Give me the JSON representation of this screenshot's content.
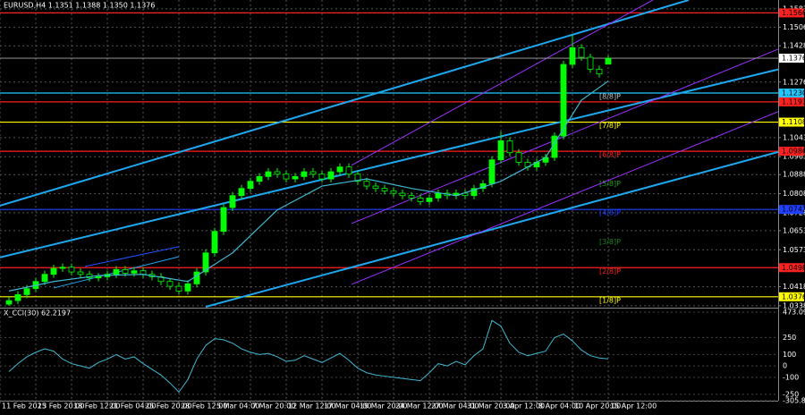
{
  "chart_data": {
    "type": "candlestick",
    "title": "EURUSD,H4  1.1351 1.1388 1.1350 1.1376",
    "color": "#00ff00",
    "open": [
      1.0345,
      1.036,
      1.0385,
      1.041,
      1.044,
      1.047,
      1.0495,
      1.05,
      1.048,
      1.047,
      1.0455,
      1.046,
      1.047,
      1.049,
      1.0475,
      1.0485,
      1.047,
      1.046,
      1.044,
      1.042,
      1.04,
      1.043,
      1.048,
      1.056,
      1.065,
      1.075,
      1.08,
      1.083,
      1.086,
      1.088,
      1.09,
      1.089,
      1.087,
      1.088,
      1.09,
      1.089,
      1.087,
      1.09,
      1.092,
      1.089,
      1.086,
      1.084,
      1.083,
      1.082,
      1.081,
      1.08,
      1.079,
      1.0775,
      1.079,
      1.081,
      1.08,
      1.081,
      1.08,
      1.083,
      1.085,
      1.095,
      1.103,
      1.098,
      1.094,
      1.092,
      1.094,
      1.096,
      1.105,
      1.135,
      1.142,
      1.138,
      1.133,
      1.1351
    ],
    "high": [
      1.0375,
      1.04,
      1.0425,
      1.0455,
      1.0485,
      1.051,
      1.0515,
      1.0515,
      1.0495,
      1.0485,
      1.0475,
      1.0485,
      1.0505,
      1.0505,
      1.05,
      1.05,
      1.0485,
      1.0475,
      1.0455,
      1.0435,
      1.0445,
      1.0495,
      1.0575,
      1.0665,
      1.0765,
      1.0815,
      1.0845,
      1.0875,
      1.0895,
      1.0915,
      1.0915,
      1.0905,
      1.0895,
      1.0915,
      1.0915,
      1.0905,
      1.0915,
      1.0935,
      1.0935,
      1.0905,
      1.0875,
      1.0855,
      1.0845,
      1.0835,
      1.0825,
      1.0815,
      1.0805,
      1.0805,
      1.0825,
      1.0825,
      1.0825,
      1.0825,
      1.0845,
      1.0865,
      1.0965,
      1.107,
      1.1045,
      1.0995,
      1.0955,
      1.0955,
      1.0975,
      1.1065,
      1.1365,
      1.1473,
      1.1435,
      1.1395,
      1.1345,
      1.1388
    ],
    "low": [
      1.0338,
      1.0345,
      1.037,
      1.0395,
      1.0425,
      1.0455,
      1.048,
      1.0465,
      1.0455,
      1.044,
      1.044,
      1.0445,
      1.0455,
      1.046,
      1.046,
      1.0455,
      1.0445,
      1.0425,
      1.0405,
      1.0385,
      1.0385,
      1.0415,
      1.0465,
      1.0545,
      1.0635,
      1.0735,
      1.0785,
      1.0815,
      1.0845,
      1.0865,
      1.0875,
      1.0855,
      1.0855,
      1.0865,
      1.0875,
      1.0855,
      1.0855,
      1.0885,
      1.0875,
      1.0845,
      1.0825,
      1.0815,
      1.0805,
      1.0795,
      1.0785,
      1.0775,
      1.076,
      1.076,
      1.0775,
      1.0785,
      1.0785,
      1.0785,
      1.0785,
      1.0815,
      1.0835,
      1.0935,
      1.0965,
      1.0925,
      1.0905,
      1.0905,
      1.0925,
      1.0945,
      1.1035,
      1.1335,
      1.1365,
      1.1315,
      1.1295,
      1.135
    ],
    "close": [
      1.036,
      1.0385,
      1.041,
      1.044,
      1.047,
      1.0495,
      1.05,
      1.048,
      1.047,
      1.0455,
      1.046,
      1.047,
      1.049,
      1.0475,
      1.0485,
      1.047,
      1.046,
      1.044,
      1.042,
      1.04,
      1.043,
      1.048,
      1.056,
      1.065,
      1.075,
      1.08,
      1.083,
      1.086,
      1.088,
      1.09,
      1.089,
      1.087,
      1.088,
      1.09,
      1.089,
      1.087,
      1.09,
      1.092,
      1.089,
      1.086,
      1.084,
      1.083,
      1.082,
      1.081,
      1.08,
      1.079,
      1.0775,
      1.079,
      1.081,
      1.08,
      1.081,
      1.08,
      1.083,
      1.085,
      1.095,
      1.103,
      1.098,
      1.094,
      1.092,
      1.094,
      1.096,
      1.105,
      1.135,
      1.142,
      1.138,
      1.133,
      1.131,
      1.1376
    ],
    "xlim": [
      -1,
      86
    ],
    "xticks": [
      {
        "value": -1,
        "label": "11 Feb 2025"
      },
      {
        "value": 3,
        "label": "13 Feb 20:00"
      },
      {
        "value": 7,
        "label": "18 Feb 12:00"
      },
      {
        "value": 11,
        "label": "21 Feb 04:00"
      },
      {
        "value": 15,
        "label": "25 Feb 20:00"
      },
      {
        "value": 19,
        "label": "28 Feb 12:00"
      },
      {
        "value": 23,
        "label": "5 Mar 04:00"
      },
      {
        "value": 27,
        "label": "7 Mar 20:00"
      },
      {
        "value": 31,
        "label": "12 Mar 12:00"
      },
      {
        "value": 35,
        "label": "17 Mar 04:00"
      },
      {
        "value": 39,
        "label": "19 Mar 20:00"
      },
      {
        "value": 43,
        "label": "24 Mar 12:00"
      },
      {
        "value": 47,
        "label": "27 Mar 04:00"
      },
      {
        "value": 51,
        "label": "31 Mar 20:00"
      },
      {
        "value": 55,
        "label": "3 Apr 12:00"
      },
      {
        "value": 59,
        "label": "8 Apr 04:00"
      },
      {
        "value": 63,
        "label": "10 Apr 20:00"
      },
      {
        "value": 67,
        "label": "15 Apr 12:00"
      }
    ],
    "ylim": [
      1.0334,
      1.162
    ],
    "yticks": [
      1.1583,
      1.1506,
      1.1428,
      1.1276,
      1.1043,
      1.0963,
      1.0888,
      1.0808,
      1.0728,
      1.0653,
      1.0573,
      1.0418,
      1.0338
    ],
    "grid": true,
    "bid": 1.1376,
    "ma": {
      "color": "#3fb8d0",
      "x": [
        0,
        5,
        10,
        15,
        20,
        25,
        30,
        35,
        40,
        45,
        50,
        55,
        60,
        62,
        64,
        67
      ],
      "values": [
        1.04,
        1.044,
        1.0465,
        1.047,
        1.044,
        1.056,
        1.074,
        1.084,
        1.087,
        1.083,
        1.08,
        1.086,
        1.096,
        1.108,
        1.12,
        1.128
      ]
    },
    "trend_lines": [
      {
        "color": "#1ea8f0",
        "x": [
          -1,
          76
        ],
        "values": [
          1.0758,
          1.162
        ]
      },
      {
        "color": "#1ea8f0",
        "x": [
          -1,
          86
        ],
        "values": [
          1.0541,
          1.1329
        ]
      },
      {
        "color": "#1ea8f0",
        "x": [
          22,
          86
        ],
        "values": [
          1.0334,
          1.0983
        ]
      },
      {
        "color": "#1ea8f0",
        "x": [
          5,
          19
        ],
        "values": [
          1.0413,
          1.0544
        ]
      },
      {
        "color": "#2050ff",
        "x": [
          8.5,
          19
        ],
        "values": [
          1.0503,
          1.0586
        ]
      },
      {
        "color": "#9b30ff",
        "x": [
          38.3,
          72
        ],
        "values": [
          1.0927,
          1.162
        ]
      },
      {
        "color": "#9b30ff",
        "x": [
          38.3,
          86
        ],
        "values": [
          1.0683,
          1.1414
        ]
      },
      {
        "color": "#9b30ff",
        "x": [
          38.3,
          86
        ],
        "values": [
          1.0428,
          1.1152
        ]
      }
    ],
    "levels": [
      {
        "value": 1.1566,
        "color": "#ff2020"
      },
      {
        "value": 1.123,
        "label": "1.1230",
        "color": "#20c8ff"
      },
      {
        "value": 1.1193,
        "color": "#ff2020"
      },
      {
        "value": 1.1108,
        "color": "#ffff00"
      },
      {
        "value": 1.0986,
        "color": "#ff2020"
      },
      {
        "value": 1.0742,
        "color": "#2040ff"
      },
      {
        "value": 1.0498,
        "color": "#ff2020"
      },
      {
        "value": 1.0376,
        "color": "#ffff00"
      }
    ],
    "murray": [
      {
        "value": 1.123,
        "label": "[8/8]P",
        "color": "#c0c0c0"
      },
      {
        "value": 1.1108,
        "label": "[7/8]P",
        "color": "#ffff00"
      },
      {
        "value": 1.0986,
        "label": "[6/8]P",
        "color": "#ff2020"
      },
      {
        "value": 1.0864,
        "label": "[5/8]P",
        "color": "#20a020"
      },
      {
        "value": 1.0742,
        "label": "[4/8]P",
        "color": "#2040ff"
      },
      {
        "value": 1.062,
        "label": "[3/8]P",
        "color": "#208020"
      },
      {
        "value": 1.0498,
        "label": "[2/8]P",
        "color": "#ff2020"
      },
      {
        "value": 1.0376,
        "label": "[1/8]P",
        "color": "#ffff00"
      }
    ],
    "cci": {
      "title": "X_CCI(30) 62.2197",
      "color": "#3fb8d0",
      "ylim": [
        -305.8679,
        473.0924
      ],
      "yticks": [
        473.0924,
        250,
        100,
        0,
        -100,
        -250,
        -305.8679
      ],
      "values": [
        -50,
        20,
        80,
        120,
        150,
        130,
        60,
        20,
        0,
        -20,
        30,
        60,
        100,
        60,
        80,
        20,
        -30,
        -80,
        -150,
        -230,
        -120,
        60,
        180,
        240,
        230,
        200,
        150,
        120,
        100,
        110,
        80,
        40,
        50,
        90,
        60,
        30,
        70,
        110,
        50,
        -20,
        -60,
        -80,
        -90,
        -100,
        -110,
        -120,
        -130,
        -60,
        20,
        0,
        40,
        10,
        90,
        150,
        400,
        350,
        200,
        120,
        90,
        110,
        130,
        250,
        280,
        220,
        140,
        90,
        70,
        62.2197
      ]
    }
  }
}
